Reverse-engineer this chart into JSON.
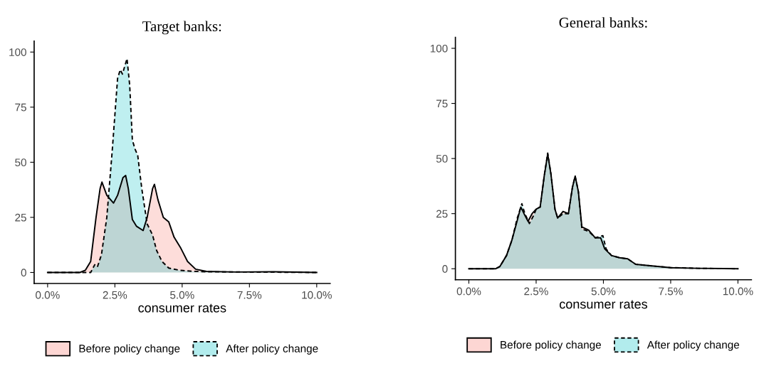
{
  "chart_data": [
    {
      "type": "area",
      "title": "Target banks:",
      "xlabel": "consumer rates",
      "xlim": [
        -0.5,
        10.5
      ],
      "ylim": [
        -5,
        105
      ],
      "xticks": [
        {
          "value": 0,
          "label": "0.0%"
        },
        {
          "value": 2.5,
          "label": "2.5%"
        },
        {
          "value": 5,
          "label": "5.0%"
        },
        {
          "value": 7.5,
          "label": "7.5%"
        },
        {
          "value": 10,
          "label": "10.0%"
        }
      ],
      "yticks": [
        0,
        25,
        50,
        75,
        100
      ],
      "grid": false,
      "legend": "bottom",
      "series": [
        {
          "name": "Before policy change",
          "color": "#f8766d",
          "line_style": "solid",
          "x": [
            0,
            1.2,
            1.4,
            1.6,
            1.8,
            1.95,
            2.02,
            2.2,
            2.45,
            2.6,
            2.8,
            2.9,
            3.0,
            3.15,
            3.3,
            3.55,
            3.7,
            3.9,
            3.97,
            4.1,
            4.3,
            4.5,
            4.7,
            4.95,
            5.2,
            5.5,
            5.9,
            7,
            8.4,
            10
          ],
          "values": [
            0,
            0,
            1,
            5,
            25,
            38,
            41,
            35,
            31.5,
            35,
            43,
            44,
            38,
            24,
            21,
            19,
            25,
            38,
            40,
            33,
            25,
            23,
            16,
            11,
            5,
            1.5,
            0.5,
            0.2,
            0.3,
            0
          ]
        },
        {
          "name": "After policy change",
          "color": "#00bfc4",
          "line_style": "dashed",
          "x": [
            0,
            1.4,
            1.6,
            1.75,
            1.85,
            2.0,
            2.2,
            2.4,
            2.6,
            2.7,
            2.78,
            2.95,
            3.05,
            3.15,
            3.25,
            3.35,
            3.5,
            3.7,
            3.9,
            4.05,
            4.25,
            4.5,
            4.9,
            5.4,
            6,
            10
          ],
          "values": [
            0,
            0,
            0,
            3.5,
            2.5,
            8,
            25,
            55,
            88,
            92,
            90,
            97,
            85,
            60,
            56,
            53,
            38,
            22,
            17,
            10,
            5,
            2,
            1,
            0.5,
            0.3,
            0
          ]
        }
      ]
    },
    {
      "type": "area",
      "title": "General banks:",
      "xlabel": "consumer rates",
      "xlim": [
        -0.5,
        10.5
      ],
      "ylim": [
        -5,
        105
      ],
      "xticks": [
        {
          "value": 0,
          "label": "0.0%"
        },
        {
          "value": 2.5,
          "label": "2.5%"
        },
        {
          "value": 5,
          "label": "5.0%"
        },
        {
          "value": 7.5,
          "label": "7.5%"
        },
        {
          "value": 10,
          "label": "10.0%"
        }
      ],
      "yticks": [
        0,
        25,
        50,
        75,
        100
      ],
      "grid": false,
      "legend": "bottom",
      "series": [
        {
          "name": "Before policy change",
          "color": "#f8766d",
          "line_style": "solid",
          "x": [
            0,
            1.0,
            1.15,
            1.4,
            1.6,
            1.8,
            1.93,
            2.05,
            2.2,
            2.35,
            2.5,
            2.65,
            2.8,
            2.93,
            3.05,
            3.2,
            3.3,
            3.5,
            3.7,
            3.85,
            3.95,
            4.07,
            4.2,
            4.45,
            4.7,
            4.9,
            5.05,
            5.3,
            5.6,
            5.9,
            6.2,
            6.6,
            7.5,
            8.5,
            10
          ],
          "values": [
            0,
            0,
            1,
            6,
            13,
            22,
            28,
            25,
            21.5,
            25,
            27,
            28,
            42,
            52,
            43,
            27,
            23,
            26,
            25,
            37,
            42,
            35,
            19,
            17.5,
            14,
            14,
            9,
            6,
            5,
            4.5,
            2,
            1.5,
            0.5,
            0.2,
            0
          ]
        },
        {
          "name": "After policy change",
          "color": "#00bfc4",
          "line_style": "dashed",
          "x": [
            0,
            1.0,
            1.15,
            1.4,
            1.6,
            1.8,
            1.97,
            2.08,
            2.25,
            2.4,
            2.5,
            2.65,
            2.8,
            2.93,
            3.05,
            3.2,
            3.3,
            3.5,
            3.7,
            3.85,
            3.95,
            4.07,
            4.2,
            4.45,
            4.7,
            4.98,
            5.1,
            5.3,
            5.6,
            5.9,
            6.2,
            6.6,
            7.5,
            8.5,
            10
          ],
          "values": [
            0,
            0,
            1,
            6,
            13,
            23,
            29.5,
            25,
            20.5,
            24,
            27,
            28,
            42,
            52.5,
            43,
            27,
            23,
            25,
            25,
            37,
            42,
            35,
            18,
            17,
            14,
            15,
            9,
            6,
            5,
            4.5,
            2,
            1.5,
            0.5,
            0.2,
            0
          ]
        }
      ]
    }
  ]
}
